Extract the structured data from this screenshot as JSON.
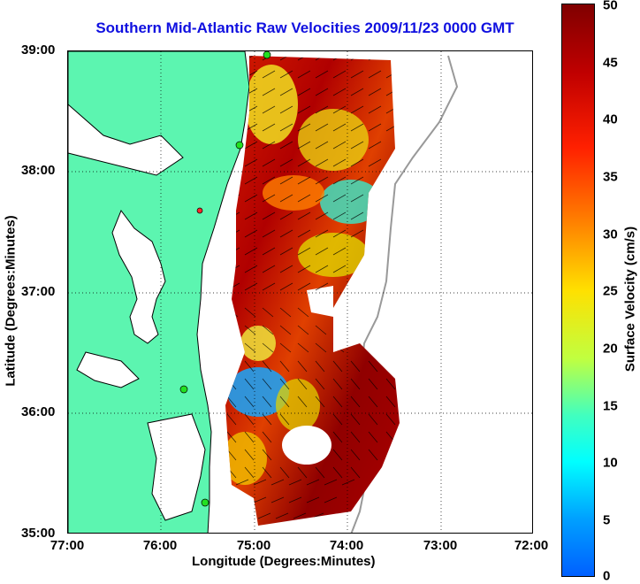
{
  "title": "Southern Mid-Atlantic Raw Velocities 2009/11/23 0000 GMT",
  "x_axis": {
    "label": "Longitude (Degrees:Minutes)",
    "ticks": [
      "77:00",
      "76:00",
      "75:00",
      "74:00",
      "73:00",
      "72:00"
    ]
  },
  "y_axis": {
    "label": "Latitude (Degrees:Minutes)",
    "ticks": [
      "39:00",
      "38:00",
      "37:00",
      "36:00",
      "35:00"
    ]
  },
  "colorbar": {
    "label": "Surface Velocity (cm/s)",
    "ticks": [
      "50",
      "45",
      "40",
      "35",
      "30",
      "25",
      "20",
      "15",
      "10",
      "5",
      "0"
    ]
  },
  "colors": {
    "land": "#5cf5b0",
    "title": "#1010e0",
    "station_marker": "#22e022",
    "highlight_marker": "#ff2a2a"
  }
}
